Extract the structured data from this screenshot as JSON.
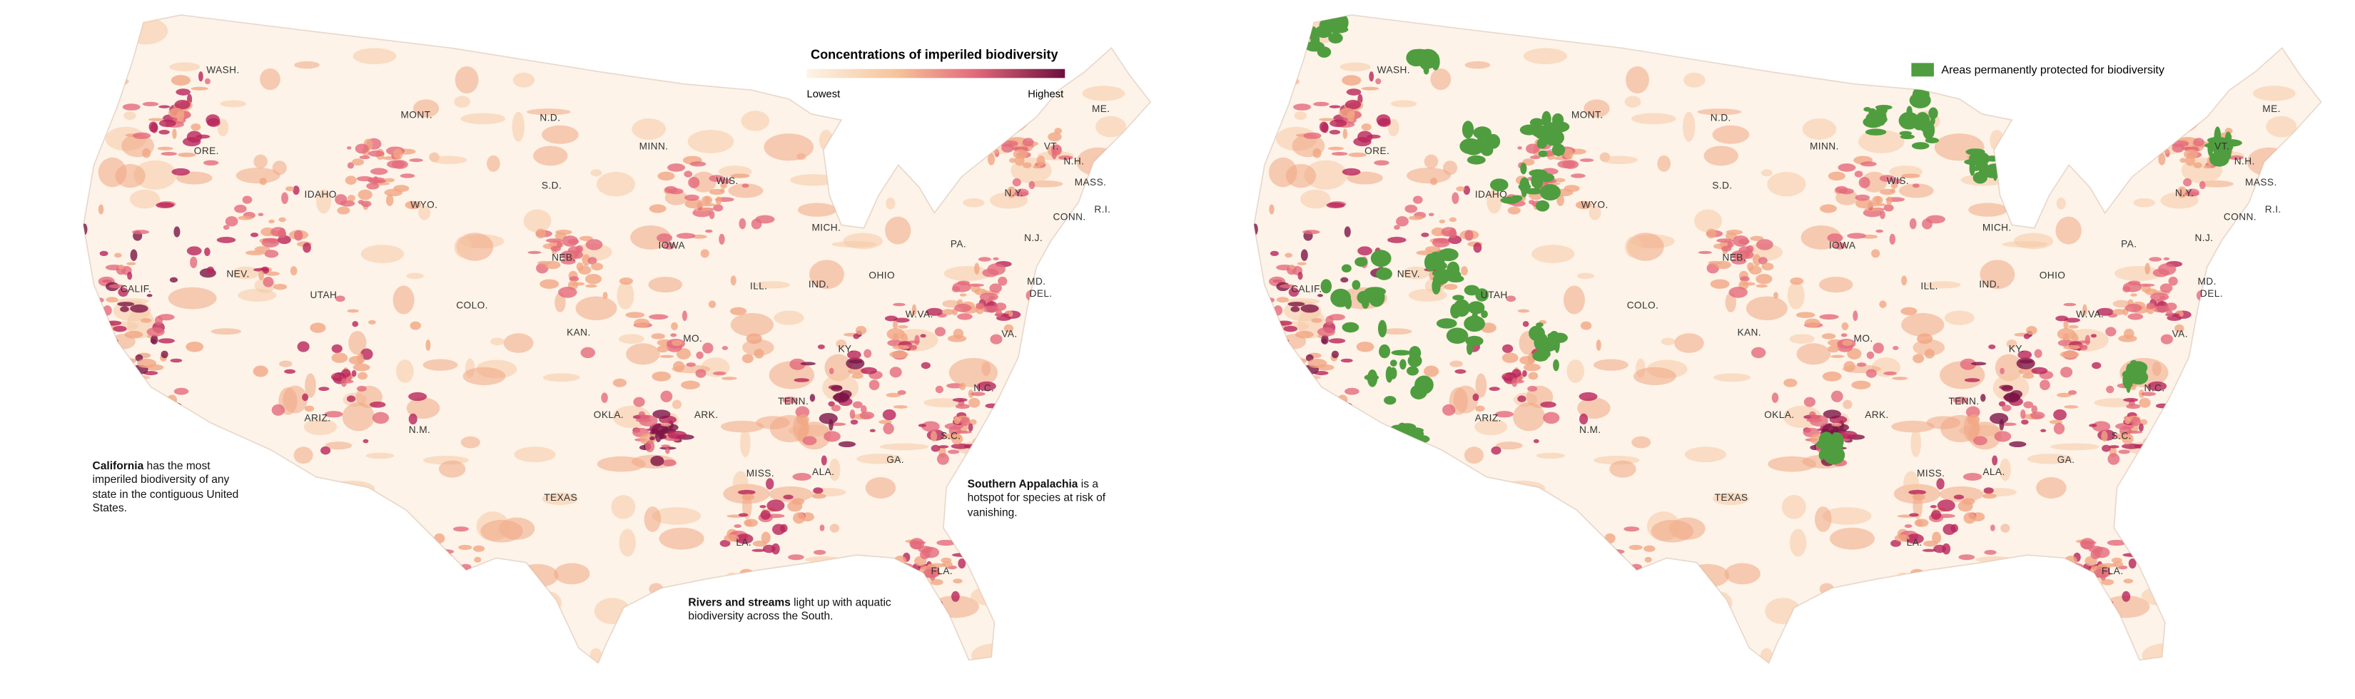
{
  "left_map": {
    "legend": {
      "title": "Concentrations of imperiled biodiversity",
      "low_label": "Lowest",
      "high_label": "Highest"
    },
    "annotations": [
      {
        "bold": "California",
        "text": " has the most imperiled biodiversity of any state in the contiguous United States."
      },
      {
        "bold": "Southern Appalachia",
        "text": " is a hotspot for species at risk of vanishing."
      },
      {
        "bold": "Rivers and streams",
        "text": " light up with aquatic biodiversity across the South."
      }
    ]
  },
  "right_map": {
    "legend": {
      "label": "Areas permanently protected for biodiversity"
    }
  },
  "state_labels": [
    "WASH.",
    "MONT.",
    "N.D.",
    "MINN.",
    "ORE.",
    "IDAHO",
    "WYO.",
    "S.D.",
    "WIS.",
    "MICH.",
    "N.Y.",
    "VT.",
    "N.H.",
    "ME.",
    "MASS.",
    "CONN.",
    "R.I.",
    "N.J.",
    "PA.",
    "IOWA",
    "NEB.",
    "NEV.",
    "CALIF.",
    "UTAH",
    "COLO.",
    "ILL.",
    "IND.",
    "OHIO",
    "MD.",
    "DEL.",
    "W.VA.",
    "VA.",
    "KAN.",
    "MO.",
    "KY.",
    "N.C.",
    "TENN.",
    "ARIZ.",
    "N.M.",
    "OKLA.",
    "ARK.",
    "S.C.",
    "GA.",
    "ALA.",
    "MISS.",
    "TEXAS",
    "LA.",
    "FLA."
  ]
}
